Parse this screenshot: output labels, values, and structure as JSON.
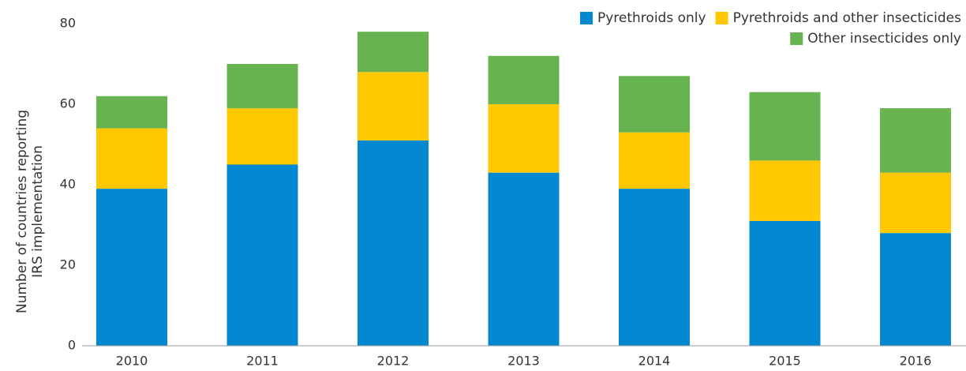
{
  "chart_data": {
    "type": "stacked_bar",
    "y_label": [
      "Number of countries reporting",
      "IRS implementation"
    ],
    "categories": [
      "2010",
      "2011",
      "2012",
      "2013",
      "2014",
      "2015",
      "2016"
    ],
    "series": [
      {
        "name": "Pyrethroids only",
        "color": "#0288d1",
        "values": [
          39,
          45,
          51,
          43,
          39,
          31,
          28
        ]
      },
      {
        "name": "Pyrethroids and other insecticides",
        "color": "#ffc800",
        "values": [
          15,
          14,
          17,
          17,
          14,
          15,
          15
        ]
      },
      {
        "name": "Other insecticides only",
        "color": "#66b350",
        "values": [
          8,
          11,
          10,
          12,
          14,
          17,
          16
        ]
      }
    ],
    "ylim": [
      0,
      80
    ],
    "yticks": [
      0,
      20,
      40,
      60,
      80
    ],
    "grid": false,
    "legend": "top-right"
  }
}
